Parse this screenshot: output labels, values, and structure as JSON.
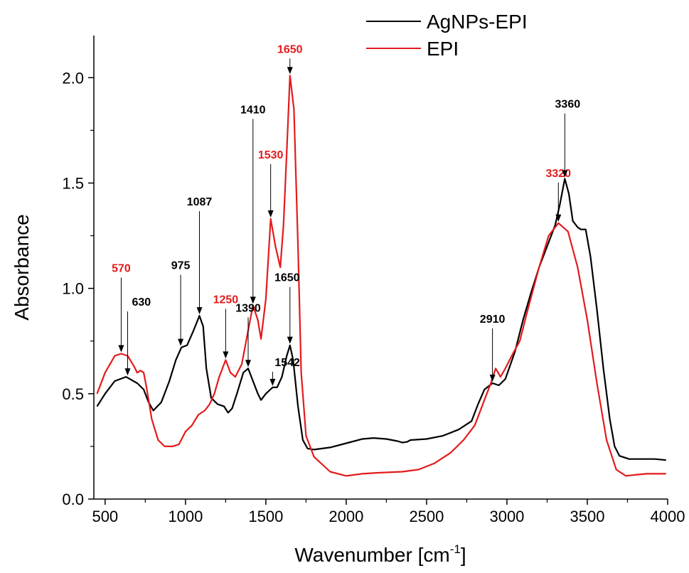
{
  "chart_data": {
    "type": "line",
    "title": "",
    "xlabel": "Wavenumber [cm",
    "xlabel_sup": "-1",
    "xlabel_close": "]",
    "ylabel": "Absorbance",
    "xlim": [
      430,
      4000
    ],
    "ylim": [
      0.0,
      2.2
    ],
    "xticks": [
      500,
      1000,
      1500,
      2000,
      2500,
      3000,
      3500,
      4000
    ],
    "yticks": [
      0.0,
      0.5,
      1.0,
      1.5,
      2.0
    ],
    "xtick_labels": [
      "500",
      "1000",
      "1500",
      "2000",
      "2500",
      "3000",
      "3500",
      "4000"
    ],
    "ytick_labels": [
      "0.0",
      "0.5",
      "1.0",
      "1.5",
      "2.0"
    ],
    "grid": false,
    "legend_position": "top-right",
    "series": [
      {
        "name": "AgNPs-EPI",
        "color": "#000000",
        "points": [
          [
            450,
            0.44
          ],
          [
            500,
            0.5
          ],
          [
            560,
            0.56
          ],
          [
            630,
            0.58
          ],
          [
            700,
            0.55
          ],
          [
            740,
            0.52
          ],
          [
            770,
            0.46
          ],
          [
            800,
            0.42
          ],
          [
            850,
            0.46
          ],
          [
            900,
            0.56
          ],
          [
            940,
            0.66
          ],
          [
            975,
            0.72
          ],
          [
            1010,
            0.73
          ],
          [
            1050,
            0.8
          ],
          [
            1087,
            0.87
          ],
          [
            1110,
            0.82
          ],
          [
            1130,
            0.62
          ],
          [
            1160,
            0.48
          ],
          [
            1200,
            0.45
          ],
          [
            1240,
            0.44
          ],
          [
            1265,
            0.41
          ],
          [
            1290,
            0.43
          ],
          [
            1320,
            0.5
          ],
          [
            1360,
            0.6
          ],
          [
            1390,
            0.62
          ],
          [
            1420,
            0.56
          ],
          [
            1450,
            0.5
          ],
          [
            1470,
            0.47
          ],
          [
            1500,
            0.5
          ],
          [
            1542,
            0.53
          ],
          [
            1570,
            0.53
          ],
          [
            1600,
            0.58
          ],
          [
            1630,
            0.68
          ],
          [
            1650,
            0.73
          ],
          [
            1670,
            0.66
          ],
          [
            1700,
            0.44
          ],
          [
            1730,
            0.28
          ],
          [
            1760,
            0.24
          ],
          [
            1800,
            0.235
          ],
          [
            1900,
            0.245
          ],
          [
            2000,
            0.265
          ],
          [
            2100,
            0.285
          ],
          [
            2170,
            0.29
          ],
          [
            2250,
            0.285
          ],
          [
            2320,
            0.275
          ],
          [
            2350,
            0.268
          ],
          [
            2380,
            0.272
          ],
          [
            2400,
            0.28
          ],
          [
            2500,
            0.285
          ],
          [
            2600,
            0.3
          ],
          [
            2700,
            0.33
          ],
          [
            2780,
            0.37
          ],
          [
            2820,
            0.45
          ],
          [
            2860,
            0.52
          ],
          [
            2910,
            0.55
          ],
          [
            2950,
            0.54
          ],
          [
            2990,
            0.57
          ],
          [
            3050,
            0.7
          ],
          [
            3100,
            0.85
          ],
          [
            3150,
            0.98
          ],
          [
            3200,
            1.1
          ],
          [
            3250,
            1.2
          ],
          [
            3300,
            1.3
          ],
          [
            3330,
            1.4
          ],
          [
            3360,
            1.52
          ],
          [
            3385,
            1.45
          ],
          [
            3410,
            1.32
          ],
          [
            3440,
            1.29
          ],
          [
            3460,
            1.28
          ],
          [
            3490,
            1.28
          ],
          [
            3520,
            1.15
          ],
          [
            3560,
            0.9
          ],
          [
            3600,
            0.62
          ],
          [
            3640,
            0.38
          ],
          [
            3670,
            0.25
          ],
          [
            3700,
            0.205
          ],
          [
            3760,
            0.19
          ],
          [
            3850,
            0.19
          ],
          [
            3920,
            0.19
          ],
          [
            3990,
            0.185
          ]
        ]
      },
      {
        "name": "EPI",
        "color": "#e41a1c",
        "points": [
          [
            450,
            0.5
          ],
          [
            500,
            0.6
          ],
          [
            560,
            0.68
          ],
          [
            600,
            0.69
          ],
          [
            640,
            0.68
          ],
          [
            680,
            0.63
          ],
          [
            700,
            0.6
          ],
          [
            720,
            0.61
          ],
          [
            740,
            0.6
          ],
          [
            760,
            0.52
          ],
          [
            790,
            0.38
          ],
          [
            830,
            0.28
          ],
          [
            870,
            0.25
          ],
          [
            920,
            0.25
          ],
          [
            960,
            0.26
          ],
          [
            1000,
            0.32
          ],
          [
            1040,
            0.35
          ],
          [
            1080,
            0.4
          ],
          [
            1120,
            0.42
          ],
          [
            1150,
            0.45
          ],
          [
            1180,
            0.5
          ],
          [
            1210,
            0.58
          ],
          [
            1250,
            0.66
          ],
          [
            1280,
            0.6
          ],
          [
            1310,
            0.58
          ],
          [
            1350,
            0.64
          ],
          [
            1390,
            0.8
          ],
          [
            1420,
            0.92
          ],
          [
            1450,
            0.85
          ],
          [
            1470,
            0.76
          ],
          [
            1500,
            0.95
          ],
          [
            1530,
            1.33
          ],
          [
            1560,
            1.2
          ],
          [
            1590,
            1.1
          ],
          [
            1610,
            1.3
          ],
          [
            1630,
            1.65
          ],
          [
            1650,
            2.01
          ],
          [
            1675,
            1.85
          ],
          [
            1700,
            1.2
          ],
          [
            1720,
            0.6
          ],
          [
            1750,
            0.3
          ],
          [
            1800,
            0.2
          ],
          [
            1900,
            0.13
          ],
          [
            2000,
            0.11
          ],
          [
            2100,
            0.12
          ],
          [
            2200,
            0.125
          ],
          [
            2350,
            0.13
          ],
          [
            2450,
            0.14
          ],
          [
            2550,
            0.17
          ],
          [
            2650,
            0.22
          ],
          [
            2730,
            0.28
          ],
          [
            2800,
            0.35
          ],
          [
            2850,
            0.45
          ],
          [
            2900,
            0.55
          ],
          [
            2930,
            0.62
          ],
          [
            2960,
            0.58
          ],
          [
            2990,
            0.62
          ],
          [
            3030,
            0.68
          ],
          [
            3080,
            0.75
          ],
          [
            3130,
            0.9
          ],
          [
            3200,
            1.1
          ],
          [
            3260,
            1.25
          ],
          [
            3320,
            1.31
          ],
          [
            3380,
            1.27
          ],
          [
            3440,
            1.1
          ],
          [
            3500,
            0.85
          ],
          [
            3560,
            0.55
          ],
          [
            3620,
            0.28
          ],
          [
            3680,
            0.14
          ],
          [
            3740,
            0.11
          ],
          [
            3800,
            0.115
          ],
          [
            3870,
            0.12
          ],
          [
            3940,
            0.12
          ],
          [
            3990,
            0.12
          ]
        ]
      }
    ],
    "annotations": [
      {
        "label": "570",
        "color": "#e41a1c",
        "x": 600,
        "y": 0.69
      },
      {
        "label": "630",
        "color": "#000000",
        "x": 640,
        "y": 0.58
      },
      {
        "label": "975",
        "color": "#000000",
        "x": 970,
        "y": 0.72
      },
      {
        "label": "1087",
        "color": "#000000",
        "x": 1087,
        "y": 0.87
      },
      {
        "label": "1250",
        "color": "#e41a1c",
        "x": 1250,
        "y": 0.66
      },
      {
        "label": "1390",
        "color": "#000000",
        "x": 1390,
        "y": 0.62
      },
      {
        "label": "1410",
        "color": "#000000",
        "x": 1420,
        "y": 0.92
      },
      {
        "label": "1530",
        "color": "#e41a1c",
        "x": 1530,
        "y": 1.33
      },
      {
        "label": "1542",
        "color": "#000000",
        "x": 1542,
        "y": 0.53
      },
      {
        "label": "1650",
        "color": "#000000",
        "x": 1650,
        "y": 0.73
      },
      {
        "label": "1650",
        "color": "#e41a1c",
        "x": 1650,
        "y": 2.01
      },
      {
        "label": "2910",
        "color": "#000000",
        "x": 2910,
        "y": 0.55
      },
      {
        "label": "3320",
        "color": "#e41a1c",
        "x": 3320,
        "y": 1.31
      },
      {
        "label": "3360",
        "color": "#000000",
        "x": 3360,
        "y": 1.52
      }
    ]
  }
}
